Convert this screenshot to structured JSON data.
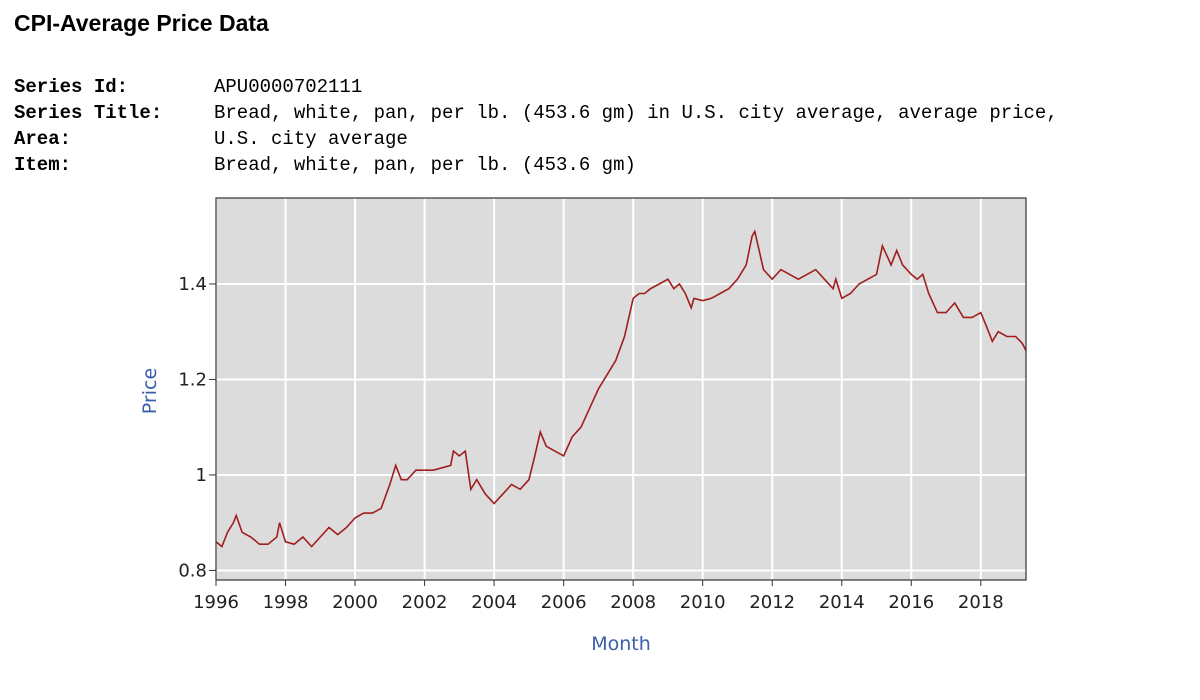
{
  "page": {
    "title": "CPI-Average Price Data"
  },
  "series_info": [
    {
      "label": "Series Id:",
      "value": "APU0000702111"
    },
    {
      "label": "Series Title:",
      "value": "Bread, white, pan, per lb. (453.6 gm) in U.S. city average, average price,"
    },
    {
      "label": "Area:",
      "value": "U.S. city average"
    },
    {
      "label": "Item:",
      "value": "Bread, white, pan, per lb. (453.6 gm)"
    }
  ],
  "colors": {
    "line": "#a01e1e",
    "plot_bg": "#dcdcdc",
    "grid": "#ffffff",
    "axis_title": "#3a5fa8"
  },
  "chart_data": {
    "type": "line",
    "xlabel": "Month",
    "ylabel": "Price",
    "xlim": [
      1996,
      2019.3
    ],
    "ylim": [
      0.78,
      1.58
    ],
    "x_ticks": [
      {
        "value": 1996,
        "label": "1996"
      },
      {
        "value": 1998,
        "label": "1998"
      },
      {
        "value": 2000,
        "label": "2000"
      },
      {
        "value": 2002,
        "label": "2002"
      },
      {
        "value": 2004,
        "label": "2004"
      },
      {
        "value": 2006,
        "label": "2006"
      },
      {
        "value": 2008,
        "label": "2008"
      },
      {
        "value": 2010,
        "label": "2010"
      },
      {
        "value": 2012,
        "label": "2012"
      },
      {
        "value": 2014,
        "label": "2014"
      },
      {
        "value": 2016,
        "label": "2016"
      },
      {
        "value": 2018,
        "label": "2018"
      }
    ],
    "y_ticks": [
      {
        "value": 0.8,
        "label": "0.8"
      },
      {
        "value": 1.0,
        "label": "1"
      },
      {
        "value": 1.2,
        "label": "1.2"
      },
      {
        "value": 1.4,
        "label": "1.4"
      }
    ],
    "grid": true,
    "legend": "none",
    "series": [
      {
        "x": [
          1996.0,
          1996.17,
          1996.33,
          1996.5,
          1996.58,
          1996.75,
          1997.0,
          1997.25,
          1997.5,
          1997.75,
          1997.83,
          1998.0,
          1998.25,
          1998.5,
          1998.75,
          1999.0,
          1999.25,
          1999.5,
          1999.75,
          2000.0,
          2000.25,
          2000.5,
          2000.75,
          2001.0,
          2001.17,
          2001.33,
          2001.5,
          2001.75,
          2002.0,
          2002.25,
          2002.5,
          2002.75,
          2002.83,
          2003.0,
          2003.17,
          2003.33,
          2003.5,
          2003.75,
          2004.0,
          2004.25,
          2004.5,
          2004.75,
          2005.0,
          2005.17,
          2005.33,
          2005.5,
          2005.75,
          2006.0,
          2006.25,
          2006.5,
          2006.75,
          2007.0,
          2007.25,
          2007.5,
          2007.75,
          2008.0,
          2008.17,
          2008.33,
          2008.5,
          2008.75,
          2009.0,
          2009.17,
          2009.33,
          2009.5,
          2009.67,
          2009.75,
          2010.0,
          2010.25,
          2010.5,
          2010.75,
          2011.0,
          2011.25,
          2011.42,
          2011.5,
          2011.75,
          2012.0,
          2012.25,
          2012.5,
          2012.75,
          2013.0,
          2013.25,
          2013.5,
          2013.75,
          2013.83,
          2014.0,
          2014.25,
          2014.5,
          2014.75,
          2015.0,
          2015.17,
          2015.42,
          2015.58,
          2015.75,
          2016.0,
          2016.17,
          2016.33,
          2016.5,
          2016.75,
          2017.0,
          2017.25,
          2017.5,
          2017.75,
          2018.0,
          2018.17,
          2018.33,
          2018.5,
          2018.75,
          2019.0,
          2019.2,
          2019.3
        ],
        "y": [
          0.86,
          0.85,
          0.88,
          0.9,
          0.915,
          0.88,
          0.87,
          0.855,
          0.855,
          0.87,
          0.9,
          0.86,
          0.855,
          0.87,
          0.85,
          0.87,
          0.89,
          0.875,
          0.89,
          0.91,
          0.92,
          0.92,
          0.93,
          0.98,
          1.02,
          0.99,
          0.99,
          1.01,
          1.01,
          1.01,
          1.015,
          1.02,
          1.05,
          1.04,
          1.05,
          0.97,
          0.99,
          0.96,
          0.94,
          0.96,
          0.98,
          0.97,
          0.99,
          1.04,
          1.09,
          1.06,
          1.05,
          1.04,
          1.08,
          1.1,
          1.14,
          1.18,
          1.21,
          1.24,
          1.29,
          1.37,
          1.38,
          1.38,
          1.39,
          1.4,
          1.41,
          1.39,
          1.4,
          1.38,
          1.35,
          1.37,
          1.365,
          1.37,
          1.38,
          1.39,
          1.41,
          1.44,
          1.5,
          1.51,
          1.43,
          1.41,
          1.43,
          1.42,
          1.41,
          1.42,
          1.43,
          1.41,
          1.39,
          1.41,
          1.37,
          1.38,
          1.4,
          1.41,
          1.42,
          1.48,
          1.44,
          1.47,
          1.44,
          1.42,
          1.41,
          1.42,
          1.38,
          1.34,
          1.34,
          1.36,
          1.33,
          1.33,
          1.34,
          1.31,
          1.28,
          1.3,
          1.29,
          1.29,
          1.275,
          1.26
        ]
      }
    ]
  }
}
